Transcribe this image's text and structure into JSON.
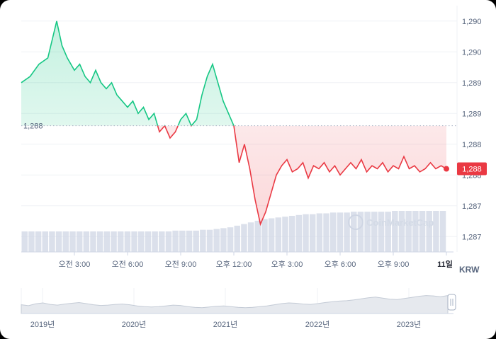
{
  "currency_label": "KRW",
  "reference_price_label": "1,288",
  "current_price_label": "1,288",
  "watermark": "CoinMarketCap",
  "colors": {
    "up": "#16c784",
    "down": "#ea3943",
    "grid": "#eff2f5",
    "volume": "#cfd6e4",
    "navigator_fill": "#e6e9ee"
  },
  "chart_data": {
    "type": "line",
    "title": "",
    "xlabel": "",
    "ylabel": "",
    "reference_value": 1288.6,
    "current_value": 1287.9,
    "ylim": [
      1286.55,
      1290.55
    ],
    "y_ticks": [
      1290.3,
      1289.8,
      1289.3,
      1288.8,
      1288.3,
      1287.8,
      1287.3,
      1286.8
    ],
    "y_tick_labels": [
      "1,290",
      "1,290",
      "1,289",
      "1,289",
      "1,288",
      "1,288",
      "1,287",
      "1,287"
    ],
    "x_range": [
      0.0,
      13.8
    ],
    "x_ticks": [
      1,
      4,
      7,
      10,
      13
    ],
    "x_ticks_hours": [
      3,
      6,
      9,
      12,
      15,
      18,
      21,
      24
    ],
    "x_tick_labels": [
      "오전 3:00",
      "오전 6:00",
      "오전 9:00",
      "오후 12:00",
      "오후 3:00",
      "오후 6:00",
      "오후 9:00",
      "11일"
    ],
    "x_units": "hours",
    "series_hours": [
      0.0,
      0.5,
      1.0,
      1.5,
      2.0,
      2.3,
      2.6,
      3.0,
      3.3,
      3.6,
      3.9,
      4.2,
      4.5,
      4.8,
      5.1,
      5.4,
      5.7,
      6.0,
      6.3,
      6.6,
      6.9,
      7.2,
      7.5,
      7.8,
      8.1,
      8.4,
      8.7,
      9.0,
      9.3,
      9.6,
      9.9,
      10.2,
      10.5,
      10.8,
      11.1,
      11.4,
      11.7,
      12.0,
      12.3,
      12.6,
      12.9,
      13.2,
      13.5,
      13.8,
      14.1,
      14.4,
      14.7,
      15.0,
      15.3,
      15.6,
      15.9,
      16.2,
      16.5,
      16.8,
      17.1,
      17.4,
      17.7,
      18.0,
      18.3,
      18.6,
      18.9,
      19.2,
      19.5,
      19.8,
      20.1,
      20.4,
      20.7,
      21.0,
      21.3,
      21.6,
      21.9,
      22.2,
      22.5,
      22.8,
      23.1,
      23.4,
      23.7,
      24.0
    ],
    "series_values": [
      1289.3,
      1289.4,
      1289.6,
      1289.7,
      1290.3,
      1289.9,
      1289.7,
      1289.5,
      1289.6,
      1289.4,
      1289.3,
      1289.5,
      1289.3,
      1289.2,
      1289.3,
      1289.1,
      1289.0,
      1288.9,
      1289.0,
      1288.8,
      1288.9,
      1288.7,
      1288.8,
      1288.5,
      1288.6,
      1288.4,
      1288.5,
      1288.7,
      1288.8,
      1288.6,
      1288.7,
      1289.1,
      1289.4,
      1289.6,
      1289.3,
      1289.0,
      1288.8,
      1288.6,
      1288.0,
      1288.3,
      1287.9,
      1287.4,
      1287.0,
      1287.2,
      1287.5,
      1287.8,
      1287.95,
      1288.05,
      1287.85,
      1287.9,
      1288.0,
      1287.75,
      1287.95,
      1287.9,
      1288.0,
      1287.85,
      1287.95,
      1287.8,
      1287.9,
      1288.0,
      1287.9,
      1288.05,
      1287.85,
      1287.95,
      1287.9,
      1288.0,
      1287.85,
      1287.95,
      1287.9,
      1288.1,
      1287.9,
      1287.95,
      1287.85,
      1287.9,
      1288.0,
      1287.9,
      1287.95,
      1287.9
    ],
    "volume": {
      "ylim": [
        0,
        1
      ],
      "values": [
        0.25,
        0.25,
        0.25,
        0.25,
        0.25,
        0.25,
        0.25,
        0.25,
        0.25,
        0.25,
        0.25,
        0.25,
        0.25,
        0.25,
        0.25,
        0.25,
        0.25,
        0.25,
        0.25,
        0.25,
        0.25,
        0.25,
        0.26,
        0.26,
        0.26,
        0.26,
        0.27,
        0.27,
        0.28,
        0.29,
        0.3,
        0.32,
        0.34,
        0.36,
        0.38,
        0.4,
        0.41,
        0.42,
        0.43,
        0.44,
        0.45,
        0.46,
        0.46,
        0.47,
        0.47,
        0.48,
        0.48,
        0.48,
        0.49,
        0.49,
        0.49,
        0.49,
        0.49,
        0.49,
        0.5,
        0.5,
        0.5,
        0.5,
        0.5,
        0.5,
        0.5,
        0.5
      ]
    },
    "navigator": {
      "x_tick_labels": [
        "2019년",
        "2020년",
        "2021년",
        "2022년",
        "2023년"
      ],
      "values": [
        0.4,
        0.35,
        0.45,
        0.5,
        0.42,
        0.38,
        0.44,
        0.48,
        0.52,
        0.46,
        0.4,
        0.36,
        0.38,
        0.42,
        0.44,
        0.4,
        0.34,
        0.3,
        0.28,
        0.3,
        0.34,
        0.38,
        0.36,
        0.3,
        0.26,
        0.24,
        0.28,
        0.32,
        0.34,
        0.3,
        0.26,
        0.24,
        0.26,
        0.3,
        0.34,
        0.4,
        0.46,
        0.5,
        0.48,
        0.44,
        0.42,
        0.46,
        0.52,
        0.56,
        0.6,
        0.62,
        0.66,
        0.72,
        0.78,
        0.82,
        0.76,
        0.7,
        0.68,
        0.74,
        0.8,
        0.86,
        0.9,
        0.88,
        0.84,
        0.9
      ]
    }
  }
}
